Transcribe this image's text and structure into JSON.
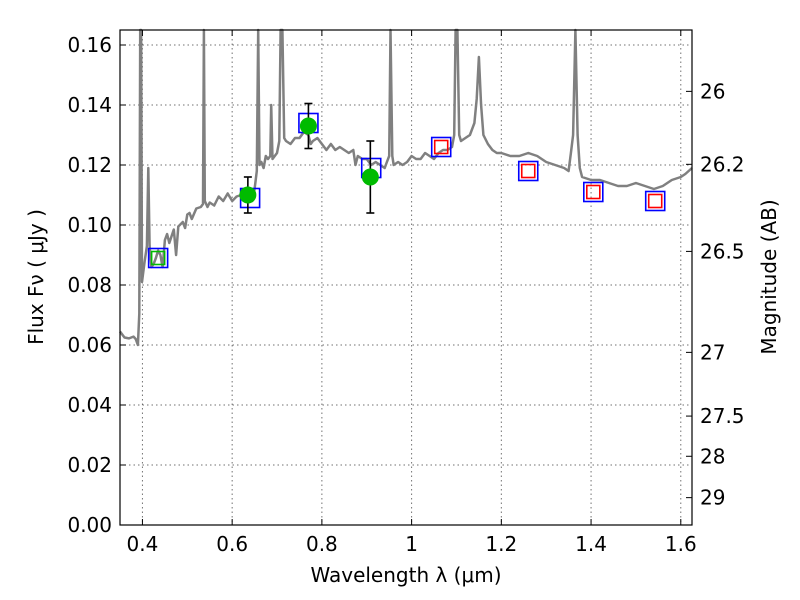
{
  "chart_data": {
    "type": "scatter",
    "xlabel": "Wavelength  λ (μm)",
    "ylabel": "Flux  Fν  ( μJy )",
    "ylabel_right": "Magnitude (AB)",
    "xlim": [
      0.35,
      1.625
    ],
    "ylim": [
      0.0,
      0.165
    ],
    "grid": true,
    "x_ticks": [
      0.4,
      0.6,
      0.8,
      1.0,
      1.2,
      1.4,
      1.6
    ],
    "x_tick_labels": [
      "0.4",
      "0.6",
      "0.8",
      "1",
      "1.2",
      "1.4",
      "1.6"
    ],
    "y_ticks": [
      0.0,
      0.02,
      0.04,
      0.06,
      0.08,
      0.1,
      0.12,
      0.14,
      0.16
    ],
    "y_tick_labels": [
      "0.00",
      "0.02",
      "0.04",
      "0.06",
      "0.08",
      "0.10",
      "0.12",
      "0.14",
      "0.16"
    ],
    "right_ticks": [
      {
        "mag": 26,
        "label": "26"
      },
      {
        "mag": 26.2,
        "label": "26.2"
      },
      {
        "mag": 26.5,
        "label": "26.5"
      },
      {
        "mag": 27,
        "label": "27"
      },
      {
        "mag": 27.5,
        "label": "27.5"
      },
      {
        "mag": 28,
        "label": "28"
      },
      {
        "mag": 29,
        "label": "29"
      }
    ],
    "series": [
      {
        "kind": "model_spectrum",
        "color": "#808080",
        "points": [
          [
            0.35,
            0.0645
          ],
          [
            0.36,
            0.0625
          ],
          [
            0.37,
            0.0622
          ],
          [
            0.38,
            0.0628
          ],
          [
            0.385,
            0.062
          ],
          [
            0.39,
            0.06
          ],
          [
            0.393,
            0.0705
          ],
          [
            0.395,
            0.165
          ],
          [
            0.397,
            0.165
          ],
          [
            0.399,
            0.081
          ],
          [
            0.405,
            0.088
          ],
          [
            0.41,
            0.093
          ],
          [
            0.413,
            0.119
          ],
          [
            0.416,
            0.093
          ],
          [
            0.42,
            0.086
          ],
          [
            0.425,
            0.087
          ],
          [
            0.43,
            0.089
          ],
          [
            0.435,
            0.0915
          ],
          [
            0.44,
            0.09
          ],
          [
            0.445,
            0.086
          ],
          [
            0.45,
            0.095
          ],
          [
            0.455,
            0.097
          ],
          [
            0.46,
            0.094
          ],
          [
            0.47,
            0.0985
          ],
          [
            0.475,
            0.09
          ],
          [
            0.48,
            0.0995
          ],
          [
            0.49,
            0.101
          ],
          [
            0.495,
            0.099
          ],
          [
            0.5,
            0.1035
          ],
          [
            0.505,
            0.104
          ],
          [
            0.51,
            0.102
          ],
          [
            0.52,
            0.1055
          ],
          [
            0.53,
            0.106
          ],
          [
            0.535,
            0.107
          ],
          [
            0.537,
            0.165
          ],
          [
            0.539,
            0.108
          ],
          [
            0.545,
            0.106
          ],
          [
            0.55,
            0.1075
          ],
          [
            0.56,
            0.1065
          ],
          [
            0.57,
            0.1095
          ],
          [
            0.58,
            0.108
          ],
          [
            0.59,
            0.1105
          ],
          [
            0.6,
            0.108
          ],
          [
            0.61,
            0.1095
          ],
          [
            0.62,
            0.11
          ],
          [
            0.63,
            0.1115
          ],
          [
            0.64,
            0.111
          ],
          [
            0.645,
            0.108
          ],
          [
            0.65,
            0.112
          ],
          [
            0.655,
            0.118
          ],
          [
            0.658,
            0.165
          ],
          [
            0.661,
            0.12
          ],
          [
            0.665,
            0.121
          ],
          [
            0.67,
            0.119
          ],
          [
            0.675,
            0.123
          ],
          [
            0.68,
            0.122
          ],
          [
            0.685,
            0.123
          ],
          [
            0.687,
            0.14
          ],
          [
            0.69,
            0.122
          ],
          [
            0.7,
            0.124
          ],
          [
            0.705,
            0.128
          ],
          [
            0.708,
            0.165
          ],
          [
            0.712,
            0.165
          ],
          [
            0.716,
            0.129
          ],
          [
            0.72,
            0.128
          ],
          [
            0.73,
            0.127
          ],
          [
            0.74,
            0.129
          ],
          [
            0.75,
            0.129
          ],
          [
            0.76,
            0.131
          ],
          [
            0.77,
            0.13
          ],
          [
            0.775,
            0.127
          ],
          [
            0.78,
            0.128
          ],
          [
            0.79,
            0.129
          ],
          [
            0.8,
            0.127
          ],
          [
            0.81,
            0.125
          ],
          [
            0.82,
            0.127
          ],
          [
            0.83,
            0.125
          ],
          [
            0.84,
            0.126
          ],
          [
            0.85,
            0.125
          ],
          [
            0.86,
            0.124
          ],
          [
            0.87,
            0.125
          ],
          [
            0.875,
            0.12
          ],
          [
            0.88,
            0.123
          ],
          [
            0.89,
            0.122
          ],
          [
            0.9,
            0.122
          ],
          [
            0.91,
            0.12
          ],
          [
            0.92,
            0.121
          ],
          [
            0.93,
            0.12
          ],
          [
            0.94,
            0.119
          ],
          [
            0.945,
            0.121
          ],
          [
            0.95,
            0.123
          ],
          [
            0.953,
            0.165
          ],
          [
            0.957,
            0.123
          ],
          [
            0.96,
            0.12
          ],
          [
            0.97,
            0.121
          ],
          [
            0.98,
            0.12
          ],
          [
            0.99,
            0.121
          ],
          [
            1.0,
            0.123
          ],
          [
            1.01,
            0.122
          ],
          [
            1.02,
            0.122
          ],
          [
            1.03,
            0.124
          ],
          [
            1.04,
            0.123
          ],
          [
            1.05,
            0.122
          ],
          [
            1.06,
            0.124
          ],
          [
            1.07,
            0.125
          ],
          [
            1.08,
            0.125
          ],
          [
            1.09,
            0.126
          ],
          [
            1.095,
            0.13
          ],
          [
            1.098,
            0.165
          ],
          [
            1.102,
            0.165
          ],
          [
            1.106,
            0.13
          ],
          [
            1.11,
            0.128
          ],
          [
            1.12,
            0.129
          ],
          [
            1.13,
            0.13
          ],
          [
            1.14,
            0.134
          ],
          [
            1.145,
            0.142
          ],
          [
            1.15,
            0.156
          ],
          [
            1.155,
            0.14
          ],
          [
            1.16,
            0.13
          ],
          [
            1.17,
            0.127
          ],
          [
            1.18,
            0.125
          ],
          [
            1.19,
            0.124
          ],
          [
            1.2,
            0.124
          ],
          [
            1.22,
            0.123
          ],
          [
            1.24,
            0.123
          ],
          [
            1.26,
            0.124
          ],
          [
            1.28,
            0.123
          ],
          [
            1.3,
            0.121
          ],
          [
            1.32,
            0.12
          ],
          [
            1.34,
            0.119
          ],
          [
            1.35,
            0.118
          ],
          [
            1.355,
            0.124
          ],
          [
            1.36,
            0.13
          ],
          [
            1.365,
            0.165
          ],
          [
            1.37,
            0.13
          ],
          [
            1.375,
            0.119
          ],
          [
            1.38,
            0.116
          ],
          [
            1.4,
            0.115
          ],
          [
            1.42,
            0.115
          ],
          [
            1.44,
            0.114
          ],
          [
            1.46,
            0.113
          ],
          [
            1.48,
            0.113
          ],
          [
            1.5,
            0.114
          ],
          [
            1.52,
            0.113
          ],
          [
            1.54,
            0.112
          ],
          [
            1.56,
            0.113
          ],
          [
            1.58,
            0.115
          ],
          [
            1.6,
            0.116
          ],
          [
            1.61,
            0.117
          ],
          [
            1.625,
            0.119
          ]
        ]
      },
      {
        "kind": "observed",
        "marker": "filled-circle",
        "color": "#00bb00",
        "points": [
          {
            "x": 0.635,
            "y": 0.11,
            "err": 0.006
          },
          {
            "x": 0.77,
            "y": 0.133,
            "err": 0.0075
          },
          {
            "x": 0.908,
            "y": 0.116,
            "err": 0.012
          }
        ]
      },
      {
        "kind": "model_blue",
        "marker": "open-square",
        "color": "#0000ff",
        "x": [
          0.435,
          0.64,
          0.77,
          0.91,
          1.066,
          1.26,
          1.405,
          1.543
        ],
        "values": [
          0.089,
          0.109,
          0.134,
          0.119,
          0.126,
          0.118,
          0.111,
          0.108
        ]
      },
      {
        "kind": "model_red",
        "marker": "open-square",
        "color": "#ff0000",
        "x": [
          1.066,
          1.26,
          1.405,
          1.543
        ],
        "values": [
          0.126,
          0.118,
          0.111,
          0.108
        ]
      },
      {
        "kind": "model_green",
        "marker": "open-square",
        "color": "#00bb00",
        "x": [
          0.435
        ],
        "values": [
          0.089
        ]
      }
    ]
  }
}
